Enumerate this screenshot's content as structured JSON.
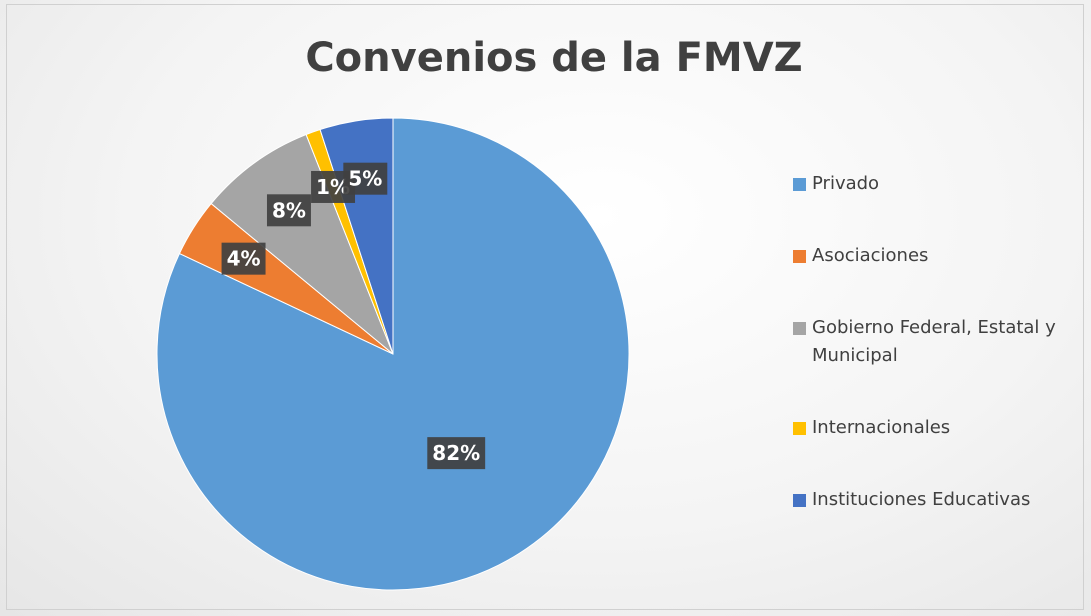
{
  "chart_data": {
    "type": "pie",
    "title": "Convenios de la FMVZ",
    "categories": [
      "Privado",
      "Asociaciones",
      "Gobierno Federal, Estatal y Municipal",
      "Internacionales",
      "Instituciones Educativas"
    ],
    "values": [
      82,
      4,
      8,
      1,
      5
    ],
    "value_labels": [
      "82%",
      "4%",
      "8%",
      "1%",
      "5%"
    ],
    "colors": [
      "#5b9bd5",
      "#ed7d31",
      "#a5a5a5",
      "#ffc000",
      "#4472c4"
    ],
    "legend": "right"
  }
}
